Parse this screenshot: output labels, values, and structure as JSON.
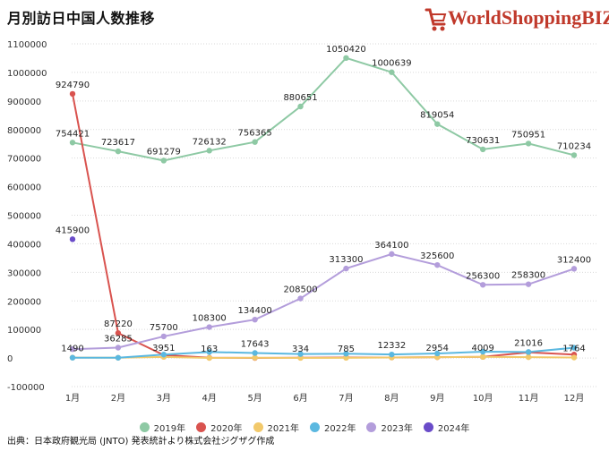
{
  "header": {
    "title": "月別訪日中国人数推移",
    "logo_text": "WorldShopping",
    "logo_suffix": "BIZ"
  },
  "source": "出典：日本政府観光局 (JNTO) 発表統計より株式会社ジグザグ作成",
  "chart_data": {
    "type": "line",
    "title": "月別訪日中国人数推移",
    "categories": [
      "1月",
      "2月",
      "3月",
      "4月",
      "5月",
      "6月",
      "7月",
      "8月",
      "9月",
      "10月",
      "11月",
      "12月"
    ],
    "ylim": [
      -100000,
      1100000
    ],
    "yticks": [
      -100000,
      0,
      100000,
      200000,
      300000,
      400000,
      500000,
      600000,
      700000,
      800000,
      900000,
      1000000,
      1100000
    ],
    "grid": true,
    "legend_position": "bottom",
    "series": [
      {
        "name": "2019年",
        "color": "#8ec9a4",
        "values": [
          754421,
          723617,
          691279,
          726132,
          756365,
          880651,
          1050420,
          1000639,
          819054,
          730631,
          750951,
          710234
        ],
        "labels": [
          "754421",
          "723617",
          "691279",
          "726132",
          "756365",
          "880651",
          "1050420",
          "1000639",
          "819054",
          "730631",
          "750951",
          "710234"
        ]
      },
      {
        "name": "2020年",
        "color": "#d9534f",
        "values": [
          924790,
          87220,
          10400,
          1000,
          200,
          1000,
          2000,
          2000,
          3000,
          4000,
          20000,
          12000
        ],
        "labels": [
          "924790",
          "87220",
          "",
          "",
          "",
          "",
          "",
          "",
          "",
          "",
          "",
          ""
        ]
      },
      {
        "name": "2021年",
        "color": "#f2c96b",
        "values": [
          1490,
          1000,
          3951,
          163,
          1000,
          334,
          785,
          2000,
          2954,
          4009,
          3000,
          1764
        ],
        "labels": [
          "1490",
          "",
          "3951",
          "163",
          "",
          "334",
          "785",
          "",
          "2954",
          "4009",
          "",
          "1764"
        ]
      },
      {
        "name": "2022年",
        "color": "#5bb8e0",
        "values": [
          1100,
          1000,
          12000,
          21000,
          17643,
          14000,
          15000,
          12332,
          16000,
          22000,
          21016,
          36000
        ],
        "labels": [
          "",
          "",
          "",
          "",
          "17643",
          "",
          "",
          "12332",
          "",
          "",
          "21016",
          ""
        ]
      },
      {
        "name": "2023年",
        "color": "#b39ddb",
        "values": [
          31000,
          36285,
          75700,
          108300,
          134400,
          208500,
          313300,
          364100,
          325600,
          256300,
          258300,
          312400
        ],
        "labels": [
          "",
          "36285",
          "75700",
          "108300",
          "134400",
          "208500",
          "313300",
          "364100",
          "325600",
          "256300",
          "258300",
          "312400"
        ]
      },
      {
        "name": "2024年",
        "color": "#6a4cc9",
        "values": [
          415900,
          null,
          null,
          null,
          null,
          null,
          null,
          null,
          null,
          null,
          null,
          null
        ],
        "labels": [
          "415900",
          "",
          "",
          "",
          "",
          "",
          "",
          "",
          "",
          "",
          "",
          ""
        ]
      }
    ]
  }
}
